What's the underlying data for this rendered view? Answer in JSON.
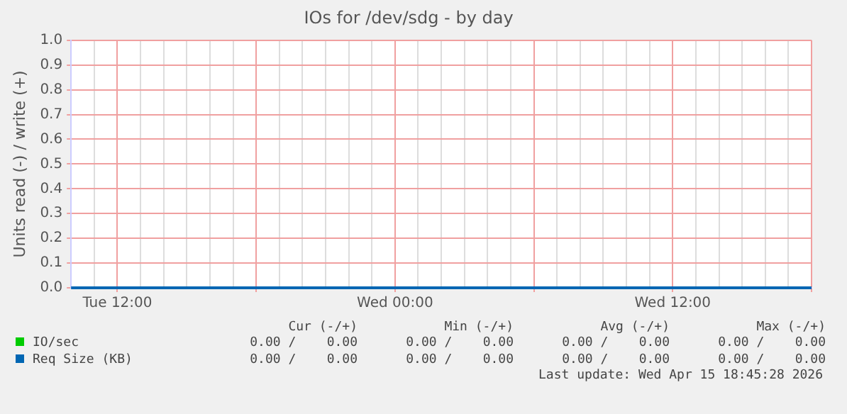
{
  "chart_data": {
    "type": "line",
    "title": "IOs for /dev/sdg - by day",
    "ylabel": "Units read (-) / write (+)",
    "categories": [
      null,
      null,
      "Tue 12:00",
      null,
      null,
      null,
      null,
      null,
      null,
      null,
      null,
      null,
      null,
      null,
      "Wed 00:00",
      null,
      null,
      null,
      null,
      null,
      null,
      null,
      null,
      null,
      null,
      null,
      "Wed 12:00",
      null,
      null,
      null,
      null,
      null,
      null
    ],
    "ylim": [
      0,
      1
    ],
    "yticks": [
      {
        "value": 0,
        "label": "0.0"
      },
      0.1,
      0.2,
      0.3,
      0.4,
      0.5,
      0.6,
      0.7,
      0.8,
      0.9,
      {
        "value": 1,
        "label": "1.0"
      }
    ],
    "grid": true,
    "legend": "bottom",
    "marker": "none",
    "line_style": "solid",
    "series": [
      {
        "name": "IO/sec",
        "color": "#00cc00",
        "values": [
          null,
          null,
          null,
          null,
          null,
          null,
          null,
          null,
          null,
          null,
          null,
          null,
          null,
          null,
          null,
          null,
          null,
          null,
          null,
          null,
          null,
          null,
          null,
          null,
          null,
          null,
          null,
          null,
          null,
          null,
          null,
          null,
          null
        ]
      },
      {
        "name": "Req Size (KB)",
        "color": "#0066b3",
        "values": [
          0,
          0,
          0,
          0,
          0,
          0,
          0,
          0,
          0,
          0,
          0,
          0,
          0,
          0,
          0,
          0,
          0,
          0,
          0,
          0,
          0,
          0,
          0,
          0,
          0,
          0,
          0,
          0,
          0,
          0,
          0,
          0,
          0
        ]
      }
    ],
    "annotations": [
      "Cur (-/+)",
      "Min (-/+)",
      "Avg (-/+)",
      "Max (-/+)",
      "0.00 /    0.00",
      "0.00 /    0.00",
      "0.00 /    0.00",
      "0.00 /    0.00",
      "0.00 /    0.00",
      "0.00 /    0.00",
      "0.00 /    0.00",
      "0.00 /    0.00",
      "Last update: Wed Apr 15 18:45:28 2026"
    ]
  }
}
